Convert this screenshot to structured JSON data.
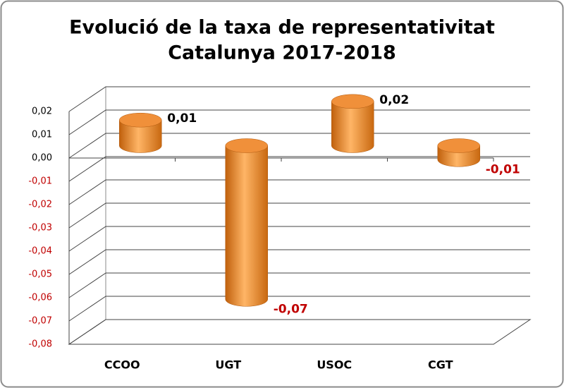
{
  "chart_data": {
    "type": "bar",
    "title": "Evolució de la taxa de representativitat",
    "subtitle": "Catalunya 2017-2018",
    "categories": [
      "CCOO",
      "UGT",
      "USOC",
      "CGT"
    ],
    "values": [
      0.011,
      -0.066,
      0.019,
      -0.006
    ],
    "value_labels": [
      "0,01",
      "-0,07",
      "0,02",
      "-0,01"
    ],
    "color": "#f0903a",
    "negative_color": "#c00000",
    "ylim": [
      -0.08,
      0.02
    ],
    "yticks": [
      {
        "value": 0.02,
        "label": "0,02"
      },
      {
        "value": 0.01,
        "label": "0,01"
      },
      {
        "value": 0,
        "label": "0,00"
      },
      {
        "value": -0.01,
        "label": "-0,01"
      },
      {
        "value": -0.02,
        "label": "-0,02"
      },
      {
        "value": -0.03,
        "label": "-0,03"
      },
      {
        "value": -0.04,
        "label": "-0,04"
      },
      {
        "value": -0.05,
        "label": "-0,05"
      },
      {
        "value": -0.06,
        "label": "-0,06"
      },
      {
        "value": -0.07,
        "label": "-0,07"
      },
      {
        "value": -0.08,
        "label": "-0,08"
      }
    ],
    "grid": true
  }
}
